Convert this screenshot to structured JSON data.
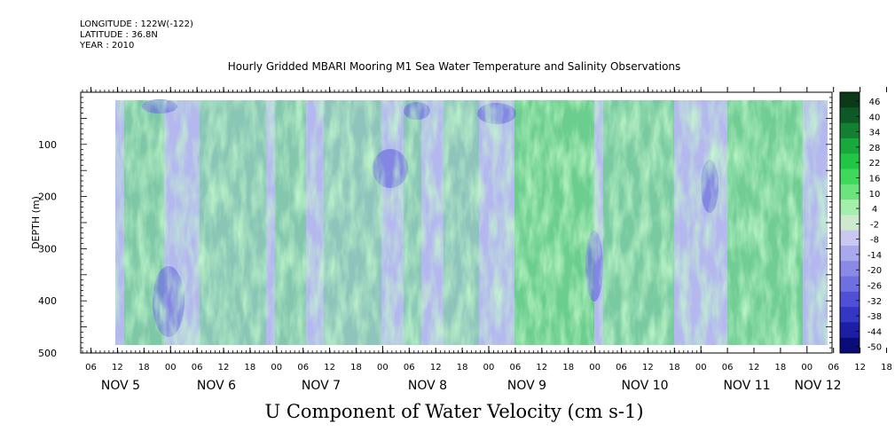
{
  "header": {
    "longitude": "LONGITUDE : 122W(-122)",
    "latitude": "LATITUDE : 36.8N",
    "year": "YEAR : 2010"
  },
  "chart_data": {
    "type": "heatmap",
    "title": "Hourly Gridded MBARI Mooring M1 Sea Water Temperature and Salinity Observations",
    "xlabel": "U Component of Water Velocity (cm s-1)",
    "ylabel": "DEPTH (m)",
    "ylim": [
      500,
      0
    ],
    "y_ticks": [
      100,
      200,
      300,
      400,
      500
    ],
    "x_hour_ticks": [
      "06",
      "12",
      "18",
      "00",
      "06",
      "12",
      "18",
      "00",
      "06",
      "12",
      "18",
      "00",
      "06",
      "12",
      "18",
      "00",
      "06",
      "12",
      "18",
      "00",
      "06",
      "12",
      "18",
      "00",
      "06",
      "12",
      "18",
      "00",
      "06",
      "12",
      "18",
      "00"
    ],
    "x_day_labels": [
      "NOV  5",
      "NOV  6",
      "NOV  7",
      "NOV  8",
      "NOV  9",
      "NOV 10",
      "NOV 11",
      "NOV 12"
    ],
    "colorbar": {
      "levels": [
        46,
        40,
        34,
        28,
        22,
        16,
        10,
        4,
        -2,
        -8,
        -14,
        -20,
        -26,
        -32,
        -38,
        -44,
        -50
      ],
      "colors": [
        "#0a3a1a",
        "#0e5a26",
        "#128030",
        "#18a83c",
        "#22c646",
        "#3ed85a",
        "#6be47e",
        "#a4efac",
        "#cfe9cf",
        "#c8c8f0",
        "#a8a8ec",
        "#8a8ae6",
        "#6f70e0",
        "#5050d6",
        "#3436c4",
        "#1c1fa6",
        "#0a0c7a"
      ]
    }
  }
}
